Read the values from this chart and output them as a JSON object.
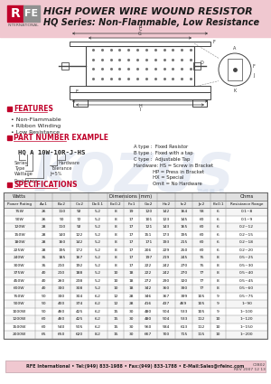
{
  "title_line1": "HIGH POWER WIRE WOUND RESISTOR",
  "title_line2": "HQ Series: Non-Flammable, Low Resistance",
  "header_bg": "#f0c8d0",
  "rfe_red": "#c0002a",
  "features_title": "FEATURES",
  "features": [
    "Non-Flammable",
    "Ribbon Winding",
    "Low Resistance"
  ],
  "part_number_title": "PART NUMBER EXAMPLE",
  "part_number": "HQ A 10W-10R-J-HS",
  "type_info": [
    "A type :  Fixed Resistor",
    "B type :  Fixed with a tap",
    "C type :  Adjustable Tap"
  ],
  "hardware_info": [
    "Hardware: HS = Screw in Bracket",
    "             HP = Press in Bracket",
    "             HX = Special",
    "             Omit = No Hardware"
  ],
  "spec_title": "SPECIFICATIONS",
  "table_subheaders": [
    "Power Rating",
    "A±1",
    "B±2",
    "C±2",
    "D±0.1",
    "E±0.2",
    "F±1",
    "G±2",
    "H±2",
    "I±2",
    "J±2",
    "K±0.1",
    "Resistance Range"
  ],
  "table_data": [
    [
      "75W",
      "26",
      "110",
      "92",
      "5.2",
      "8",
      "19",
      "120",
      "142",
      "164",
      "58",
      "6",
      "0.1~8"
    ],
    [
      "90W",
      "26",
      "90",
      "72",
      "5.2",
      "8",
      "17",
      "101",
      "123",
      "145",
      "60",
      "6",
      "0.1~9"
    ],
    [
      "120W",
      "28",
      "110",
      "92",
      "5.2",
      "8",
      "17",
      "121",
      "143",
      "165",
      "60",
      "6",
      "0.2~12"
    ],
    [
      "150W",
      "28",
      "140",
      "122",
      "5.2",
      "8",
      "17",
      "151",
      "173",
      "195",
      "60",
      "6",
      "0.2~15"
    ],
    [
      "180W",
      "28",
      "160",
      "142",
      "5.2",
      "8",
      "17",
      "171",
      "193",
      "215",
      "60",
      "6",
      "0.2~18"
    ],
    [
      "225W",
      "28",
      "195",
      "172",
      "5.2",
      "8",
      "17",
      "206",
      "229",
      "250",
      "60",
      "6",
      "0.2~20"
    ],
    [
      "240W",
      "35",
      "185",
      "167",
      "5.2",
      "8",
      "17",
      "197",
      "219",
      "245",
      "75",
      "8",
      "0.5~25"
    ],
    [
      "300W",
      "35",
      "210",
      "192",
      "5.2",
      "8",
      "17",
      "222",
      "242",
      "270",
      "75",
      "8",
      "0.5~30"
    ],
    [
      "375W",
      "40",
      "210",
      "188",
      "5.2",
      "10",
      "18",
      "222",
      "242",
      "270",
      "77",
      "8",
      "0.5~40"
    ],
    [
      "450W",
      "40",
      "260",
      "238",
      "5.2",
      "10",
      "18",
      "272",
      "290",
      "320",
      "77",
      "8",
      "0.5~45"
    ],
    [
      "600W",
      "40",
      "330",
      "308",
      "5.2",
      "10",
      "18",
      "342",
      "360",
      "390",
      "77",
      "8",
      "0.5~60"
    ],
    [
      "750W",
      "50",
      "330",
      "304",
      "6.2",
      "12",
      "28",
      "346",
      "367",
      "399",
      "105",
      "9",
      "0.5~75"
    ],
    [
      "900W",
      "50",
      "400",
      "374",
      "6.2",
      "12",
      "28",
      "416",
      "437",
      "469",
      "105",
      "9",
      "1~90"
    ],
    [
      "1000W",
      "50",
      "460",
      "425",
      "6.2",
      "15",
      "30",
      "480",
      "504",
      "533",
      "105",
      "9",
      "1~100"
    ],
    [
      "1200W",
      "60",
      "460",
      "425",
      "6.2",
      "15",
      "30",
      "480",
      "504",
      "533",
      "112",
      "10",
      "1~120"
    ],
    [
      "1500W",
      "60",
      "540",
      "505",
      "6.2",
      "15",
      "30",
      "560",
      "584",
      "613",
      "112",
      "10",
      "1~150"
    ],
    [
      "2000W",
      "65",
      "650",
      "620",
      "8.2",
      "15",
      "30",
      "667",
      "700",
      "715",
      "115",
      "10",
      "1~200"
    ]
  ],
  "footer_text": "RFE International • Tel:(949) 833-1988 • Fax:(949) 833-1788 • E-Mail:Sales@rfeinc.com",
  "footer_code": "C2B02",
  "footer_date": "REV 2007 12 13",
  "watermark_color": "#c8d4e8",
  "bg_color": "#ffffff"
}
